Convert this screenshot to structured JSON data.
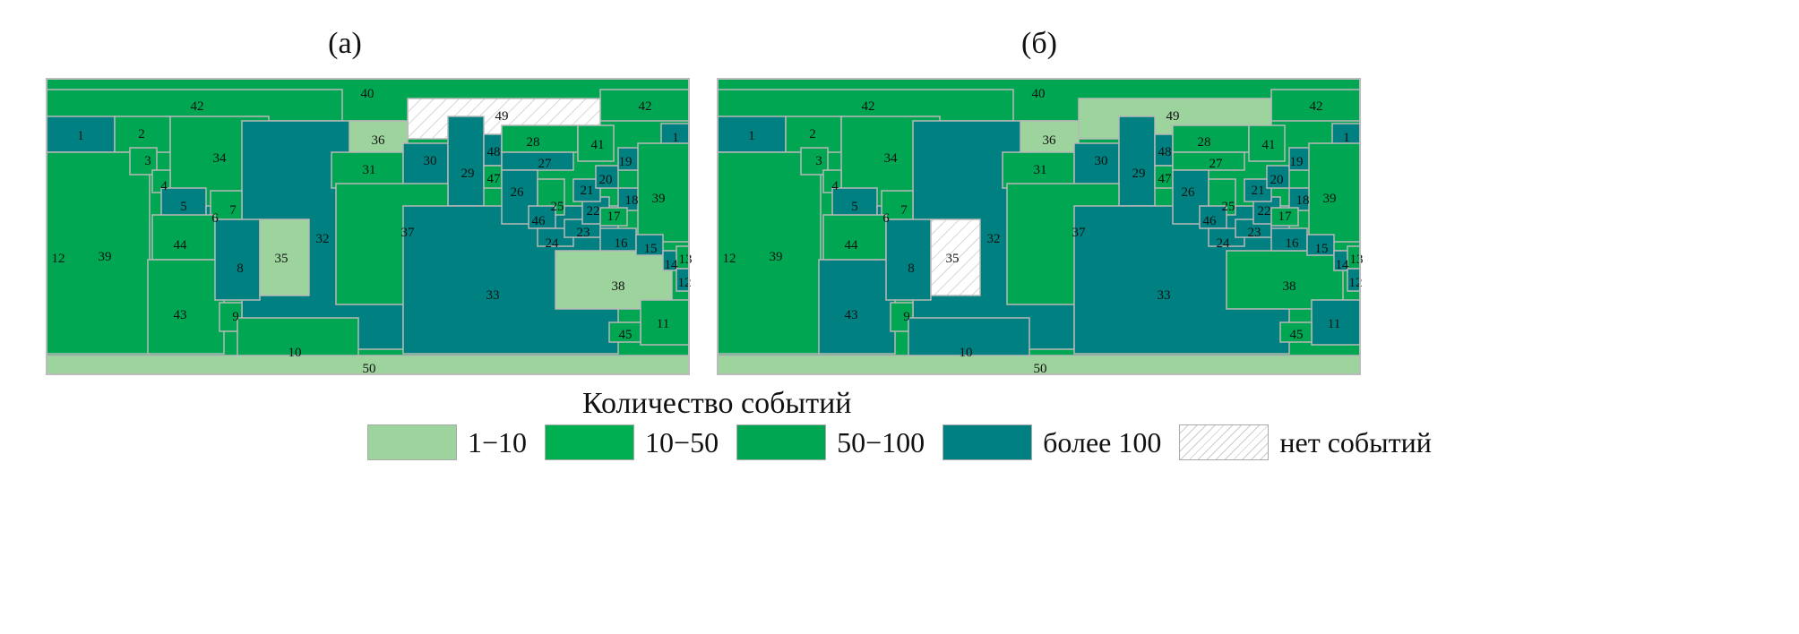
{
  "panels": [
    {
      "title": "(а)",
      "categories": {
        "1": "T",
        "2": "M",
        "3": "M",
        "4": "M",
        "5": "T",
        "6": "T",
        "7": "M",
        "8": "T",
        "9": "M",
        "10": "M",
        "11": "M",
        "12": "T",
        "13": "M",
        "14": "T",
        "15": "T",
        "16": "T",
        "17": "M",
        "18": "T",
        "19": "T",
        "20": "T",
        "21": "T",
        "22": "T",
        "23": "T",
        "24": "T",
        "25": "M",
        "26": "T",
        "27": "T",
        "28": "M",
        "29": "T",
        "30": "T",
        "31": "M",
        "32": "T",
        "33": "T",
        "34": "M",
        "35": "L",
        "36": "L",
        "37": "M",
        "38": "L",
        "39": "M",
        "40": "M",
        "41": "M",
        "42": "M",
        "43": "M",
        "44": "M",
        "45": "M",
        "46": "T",
        "47": "M",
        "48": "T",
        "49": "N",
        "50": "L"
      }
    },
    {
      "title": "(б)",
      "categories": {
        "1": "T",
        "2": "M",
        "3": "M",
        "4": "M",
        "5": "T",
        "6": "T",
        "7": "M",
        "8": "T",
        "9": "M",
        "10": "T",
        "11": "T",
        "12": "T",
        "13": "M",
        "14": "T",
        "15": "T",
        "16": "T",
        "17": "M",
        "18": "T",
        "19": "T",
        "20": "T",
        "21": "T",
        "22": "T",
        "23": "T",
        "24": "T",
        "25": "M",
        "26": "T",
        "27": "M",
        "28": "M",
        "29": "T",
        "30": "T",
        "31": "M",
        "32": "T",
        "33": "T",
        "34": "M",
        "35": "N",
        "36": "L",
        "37": "M",
        "38": "M",
        "39": "M",
        "40": "M",
        "41": "M",
        "42": "M",
        "43": "T",
        "44": "M",
        "45": "M",
        "46": "T",
        "47": "M",
        "48": "T",
        "49": "L",
        "50": "L"
      }
    }
  ],
  "legend": {
    "title": "Количество событий",
    "items": [
      {
        "code": "L",
        "label": "1−10",
        "color": "#9dd39c"
      },
      {
        "code": "G",
        "label": "10−50",
        "color": "#00b050"
      },
      {
        "code": "M",
        "label": "50−100",
        "color": "#00a651"
      },
      {
        "code": "T",
        "label": "более 100",
        "color": "#008080"
      },
      {
        "code": "N",
        "label": "нет событий",
        "color": "hatched"
      }
    ]
  }
}
